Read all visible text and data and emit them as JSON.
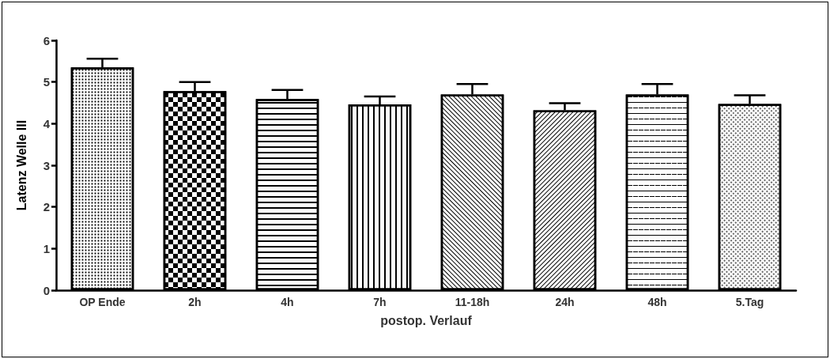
{
  "chart_data": {
    "type": "bar",
    "xlabel": "postop. Verlauf",
    "ylabel": "Latenz Welle III",
    "categories": [
      "OP Ende",
      "2h",
      "4h",
      "7h",
      "11-18h",
      "24h",
      "48h",
      "5.Tag"
    ],
    "values": [
      5.35,
      4.78,
      4.59,
      4.46,
      4.7,
      4.32,
      4.7,
      4.47
    ],
    "errors": [
      [
        5.35,
        5.56
      ],
      [
        4.78,
        5.0
      ],
      [
        4.59,
        4.81
      ],
      [
        4.46,
        4.65
      ],
      [
        4.7,
        4.95
      ],
      [
        4.32,
        4.49
      ],
      [
        4.7,
        4.95
      ],
      [
        4.47,
        4.68
      ]
    ],
    "color": "#000000",
    "ylim": [
      0,
      6
    ],
    "yticks": [
      0,
      1,
      2,
      3,
      4,
      5,
      6
    ],
    "grid": false
  }
}
